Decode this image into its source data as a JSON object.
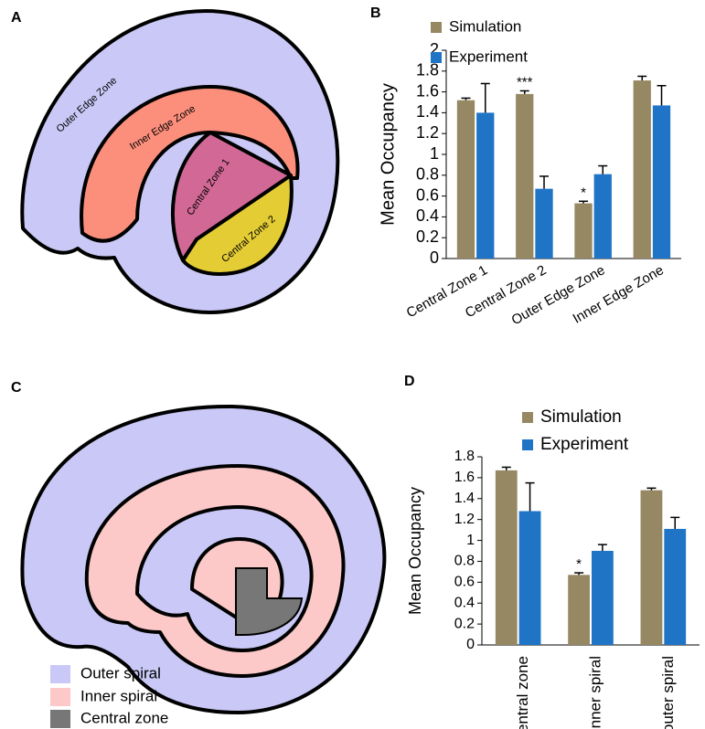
{
  "panels": [
    "A",
    "B",
    "C",
    "D"
  ],
  "diagram_a": {
    "labels": [
      "Outer Edge Zone",
      "Inner Edge Zone",
      "Central Zone 1",
      "Central Zone 2"
    ]
  },
  "diagram_c": {
    "legend": [
      "Outer spiral",
      "Inner spiral",
      "Central zone"
    ]
  },
  "chart_data": [
    {
      "type": "bar",
      "y_label": "Mean Occupancy",
      "categories": [
        "Central Zone 1",
        "Central Zone 2",
        "Outer Edge Zone",
        "Inner Edge Zone"
      ],
      "series": [
        {
          "name": "Simulation",
          "color": "#968862",
          "values": [
            1.52,
            1.58,
            0.53,
            1.71
          ],
          "errors": [
            0.02,
            0.03,
            0.02,
            0.04
          ],
          "significance": [
            null,
            "***",
            "*",
            null
          ]
        },
        {
          "name": "Experiment",
          "color": "#1f74c6",
          "values": [
            1.4,
            0.67,
            0.81,
            1.47
          ],
          "errors": [
            0.28,
            0.12,
            0.08,
            0.19
          ]
        }
      ],
      "ylim": [
        0,
        2
      ],
      "yticks": [
        0,
        0.2,
        0.4,
        0.6,
        0.8,
        1,
        1.2,
        1.4,
        1.6,
        1.8,
        2
      ]
    },
    {
      "type": "bar",
      "y_label": "Mean Occupancy",
      "categories": [
        "central zone",
        "inner spiral",
        "outer spiral"
      ],
      "series": [
        {
          "name": "Simulation",
          "color": "#968862",
          "values": [
            1.67,
            0.67,
            1.48
          ],
          "errors": [
            0.03,
            0.02,
            0.02
          ],
          "significance": [
            null,
            "*",
            null
          ]
        },
        {
          "name": "Experiment",
          "color": "#1f74c6",
          "values": [
            1.28,
            0.9,
            1.11
          ],
          "errors": [
            0.27,
            0.06,
            0.11
          ]
        }
      ],
      "ylim": [
        0,
        1.8
      ],
      "yticks": [
        0,
        0.2,
        0.4,
        0.6,
        0.8,
        1,
        1.2,
        1.4,
        1.6,
        1.8
      ]
    }
  ]
}
